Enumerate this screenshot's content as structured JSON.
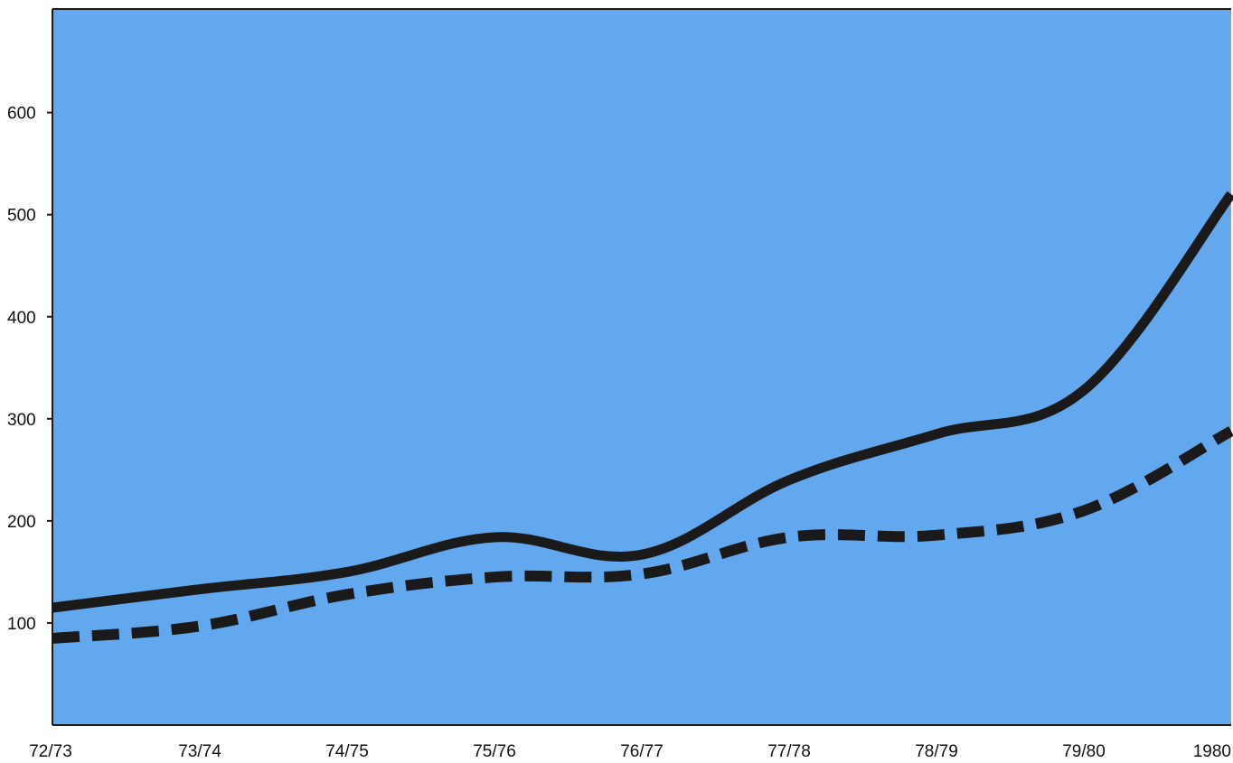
{
  "chart_data": {
    "type": "line",
    "title": "",
    "xlabel": "",
    "ylabel": "",
    "categories": [
      "72/73",
      "73/74",
      "74/75",
      "75/76",
      "76/77",
      "77/78",
      "78/79",
      "79/80",
      "1980"
    ],
    "y_ticks": [
      "100",
      "200",
      "300",
      "400",
      "500",
      "600"
    ],
    "y_tick_values": [
      100,
      200,
      300,
      400,
      500,
      600
    ],
    "ylim": [
      0,
      700
    ],
    "grid": false,
    "legend": "none",
    "series": [
      {
        "style": "solid",
        "color": "#1a1a1a",
        "values": [
          115,
          133,
          150,
          184,
          167,
          240,
          285,
          328,
          520
        ]
      },
      {
        "style": "dashed",
        "color": "#1a1a1a",
        "values": [
          85,
          97,
          128,
          145,
          148,
          184,
          186,
          210,
          288
        ]
      }
    ],
    "colors": {
      "plot_background": "#62a8ee",
      "axis": "#1a1a1a",
      "page_background": "#ffffff"
    }
  }
}
